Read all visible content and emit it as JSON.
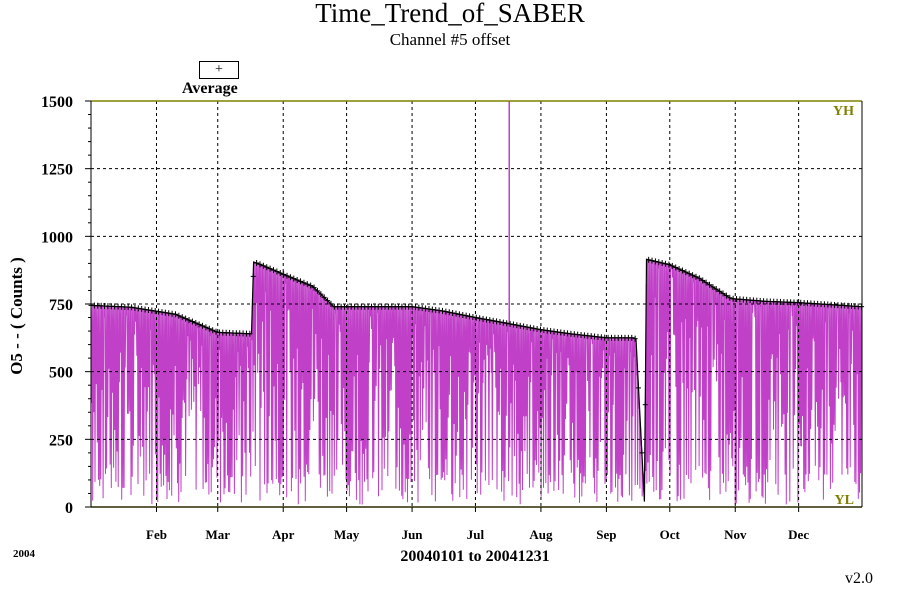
{
  "chart_data": {
    "type": "line",
    "title": "Time_Trend_of_SABER",
    "subtitle": "Channel #5 offset",
    "ylabel": "O5 - - ( Counts )",
    "xlabel": "20040101 to 20041231",
    "year_label": "2004",
    "version": "v2.0",
    "ylim": [
      0,
      1500
    ],
    "yticks": [
      0,
      250,
      500,
      750,
      1000,
      1250,
      1500
    ],
    "ytick_labels": [
      "0",
      "250",
      "500",
      "750",
      "1000",
      "1250",
      "1500"
    ],
    "xlim": [
      "2004-01-01",
      "2004-12-31"
    ],
    "xticks": [
      "2004-02-01",
      "2004-03-01",
      "2004-04-01",
      "2004-05-01",
      "2004-06-01",
      "2004-07-01",
      "2004-08-01",
      "2004-09-01",
      "2004-10-01",
      "2004-11-01",
      "2004-12-01"
    ],
    "xtick_labels": [
      "Feb",
      "Mar",
      "Apr",
      "May",
      "Jun",
      "Jul",
      "Aug",
      "Sep",
      "Oct",
      "Nov",
      "Dec"
    ],
    "grid": true,
    "limit_labels": {
      "upper": "YH",
      "lower": "YL"
    },
    "legend": {
      "symbol": "+",
      "label": "Average",
      "position": "top-left"
    },
    "colors": {
      "raw": "#c040c8",
      "average": "#000000",
      "limit": "#808000",
      "grid": "#000000"
    },
    "series": [
      {
        "name": "Average",
        "x": [
          "2004-01-01",
          "2004-01-20",
          "2004-02-10",
          "2004-02-25",
          "2004-03-01",
          "2004-03-17",
          "2004-03-18",
          "2004-03-20",
          "2004-04-01",
          "2004-04-15",
          "2004-04-25",
          "2004-05-15",
          "2004-06-01",
          "2004-06-15",
          "2004-07-01",
          "2004-07-15",
          "2004-08-01",
          "2004-08-15",
          "2004-09-01",
          "2004-09-14",
          "2004-09-15",
          "2004-09-19",
          "2004-09-20",
          "2004-10-01",
          "2004-10-15",
          "2004-10-30",
          "2004-11-15",
          "2004-12-01",
          "2004-12-31"
        ],
        "values": [
          745,
          738,
          712,
          662,
          645,
          640,
          905,
          900,
          860,
          815,
          740,
          740,
          740,
          725,
          700,
          680,
          655,
          640,
          625,
          625,
          620,
          20,
          915,
          895,
          845,
          770,
          760,
          755,
          740
        ]
      },
      {
        "name": "",
        "x": [
          "2004-07-17"
        ],
        "values": [
          1500
        ]
      }
    ]
  }
}
